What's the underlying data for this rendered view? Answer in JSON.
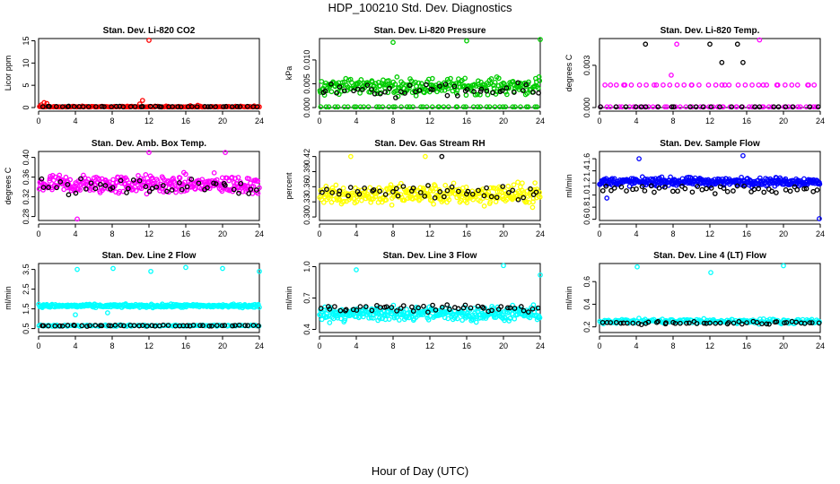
{
  "main_title": "HDP_100210  Std. Dev. Diagnostics",
  "x_axis_title": "Hour of Day (UTC)",
  "colors": {
    "red": "#ff0000",
    "green": "#00cc00",
    "magenta": "#ff00ff",
    "yellow": "#ffff00",
    "blue": "#0000ff",
    "cyan": "#00ffff",
    "black": "#000000"
  },
  "chart_data": [
    {
      "type": "scatter",
      "title": "Stan. Dev. Li-820 CO2",
      "ylabel": "Licor ppm",
      "xlim": [
        0,
        24
      ],
      "xticks": [
        "0",
        "4",
        "8",
        "12",
        "16",
        "20",
        "24"
      ],
      "ylim": [
        0,
        15.5
      ],
      "yticks": [
        "0",
        "5",
        "10",
        "15"
      ],
      "color": "red",
      "series": [
        {
          "name": "main",
          "color": "red",
          "base": 0.15,
          "spread": 0.25,
          "count": 150,
          "points": [
            [
              0.3,
              0.6
            ],
            [
              0.6,
              1.1
            ],
            [
              0.9,
              0.9
            ],
            [
              11.0,
              0.8
            ],
            [
              11.3,
              1.6
            ],
            [
              12.0,
              15.1
            ],
            [
              16.5,
              0.4
            ],
            [
              17.3,
              0.5
            ]
          ]
        },
        {
          "name": "reference",
          "color": "black",
          "base": 0.2,
          "spread": 0.15,
          "count": 45,
          "points": []
        }
      ]
    },
    {
      "type": "scatter",
      "title": "Stan. Dev. Li-820 Pressure",
      "ylabel": "kPa",
      "xlim": [
        0,
        24
      ],
      "xticks": [
        "0",
        "4",
        "8",
        "12",
        "16",
        "20",
        "24"
      ],
      "ylim": [
        0,
        0.0145
      ],
      "yticks": [
        "0.000",
        "0.005",
        "0.010"
      ],
      "color": "green",
      "series": [
        {
          "name": "main",
          "color": "green",
          "base": 0.0045,
          "spread": 0.0025,
          "count": 260,
          "points": [
            [
              8.0,
              0.0137
            ],
            [
              16.0,
              0.014
            ],
            [
              24.0,
              0.0143
            ]
          ]
        },
        {
          "name": "zeros",
          "color": "green",
          "base": 0.0,
          "spread": 0.0,
          "count": 50,
          "points": []
        },
        {
          "name": "reference",
          "color": "black",
          "base": 0.0035,
          "spread": 0.002,
          "count": 45,
          "points": []
        }
      ]
    },
    {
      "type": "scatter",
      "title": "Stan. Dev. Li-820 Temp.",
      "ylabel": "degrees C",
      "xlim": [
        0,
        24
      ],
      "xticks": [
        "0",
        "4",
        "8",
        "12",
        "16",
        "20",
        "24"
      ],
      "ylim": [
        0,
        0.0049
      ],
      "yticks": [
        "0.000",
        "0.003"
      ],
      "color": "magenta",
      "series": [
        {
          "name": "main",
          "color": "magenta",
          "base": 0.0016,
          "spread": 0.0,
          "count": 36,
          "points": [
            [
              7.8,
              0.0023
            ],
            [
              8.4,
              0.0045
            ],
            [
              17.4,
              0.0048
            ]
          ]
        },
        {
          "name": "zeros",
          "color": "magenta",
          "base": 0.0,
          "spread": 0.0,
          "count": 50,
          "points": []
        },
        {
          "name": "reference",
          "color": "black",
          "base": 0.0,
          "spread": 0.0,
          "count": 24,
          "points": [
            [
              5.0,
              0.0045
            ],
            [
              12.0,
              0.0045
            ],
            [
              15.0,
              0.0045
            ],
            [
              13.3,
              0.0032
            ],
            [
              15.6,
              0.0032
            ]
          ]
        }
      ]
    },
    {
      "type": "scatter",
      "title": "Stan. Dev. Amb. Box Temp.",
      "ylabel": "degrees C",
      "xlim": [
        0,
        24
      ],
      "xticks": [
        "0",
        "4",
        "8",
        "12",
        "16",
        "20",
        "24"
      ],
      "ylim": [
        0.272,
        0.412
      ],
      "yticks": [
        "0.28",
        "0.32",
        "0.36",
        "0.40"
      ],
      "color": "magenta",
      "series": [
        {
          "name": "main",
          "color": "magenta",
          "base": 0.345,
          "spread": 0.028,
          "count": 320,
          "points": [
            [
              4.2,
              0.275
            ],
            [
              12.0,
              0.41
            ],
            [
              20.3,
              0.41
            ]
          ]
        },
        {
          "name": "reference",
          "color": "black",
          "base": 0.34,
          "spread": 0.022,
          "count": 45,
          "points": []
        }
      ]
    },
    {
      "type": "scatter",
      "title": "Stan. Dev. Gas Stream RH",
      "ylabel": "percent",
      "xlim": [
        0,
        24
      ],
      "xticks": [
        "0",
        "4",
        "8",
        "12",
        "16",
        "20",
        "24"
      ],
      "ylim": [
        0.293,
        0.43
      ],
      "yticks": [
        "0.30",
        "0.33",
        "0.36",
        "0.39",
        "0.42"
      ],
      "color": "yellow",
      "series": [
        {
          "name": "main",
          "color": "yellow",
          "base": 0.345,
          "spread": 0.03,
          "count": 320,
          "points": [
            [
              3.4,
              0.42
            ],
            [
              11.5,
              0.42
            ]
          ]
        },
        {
          "name": "reference",
          "color": "black",
          "base": 0.35,
          "spread": 0.025,
          "count": 45,
          "points": [
            [
              13.3,
              0.42
            ]
          ]
        }
      ]
    },
    {
      "type": "scatter",
      "title": "Stan. Dev. Sample Flow",
      "ylabel": "ml/min",
      "xlim": [
        0,
        24
      ],
      "xticks": [
        "0",
        "4",
        "8",
        "12",
        "16",
        "20",
        "24"
      ],
      "ylim": [
        0.58,
        1.72
      ],
      "yticks": [
        "0.6",
        "0.8",
        "1.0",
        "1.2",
        "1.4",
        "1.6"
      ],
      "color": "blue",
      "series": [
        {
          "name": "main",
          "color": "blue",
          "base": 1.22,
          "spread": 0.1,
          "count": 360,
          "points": [
            [
              4.3,
              1.6
            ],
            [
              15.6,
              1.65
            ],
            [
              23.9,
              0.61
            ],
            [
              0.8,
              0.95
            ]
          ]
        },
        {
          "name": "reference",
          "color": "black",
          "base": 1.1,
          "spread": 0.1,
          "count": 45,
          "points": []
        }
      ]
    },
    {
      "type": "scatter",
      "title": "Stan. Dev. Line 2 Flow",
      "ylabel": "ml/min",
      "xlim": [
        0,
        24
      ],
      "xticks": [
        "0",
        "4",
        "8",
        "12",
        "16",
        "20",
        "24"
      ],
      "ylim": [
        0.3,
        3.8
      ],
      "yticks": [
        "0.5",
        "1.5",
        "2.5",
        "3.5"
      ],
      "color": "cyan",
      "series": [
        {
          "name": "main",
          "color": "cyan",
          "base": 1.65,
          "spread": 0.12,
          "count": 300,
          "points": [
            [
              4.2,
              3.5
            ],
            [
              8.1,
              3.55
            ],
            [
              12.2,
              3.4
            ],
            [
              16.0,
              3.6
            ],
            [
              20.0,
              3.55
            ],
            [
              24.0,
              3.4
            ],
            [
              4.0,
              1.2
            ],
            [
              7.5,
              1.3
            ]
          ]
        },
        {
          "name": "low",
          "color": "cyan",
          "base": 0.65,
          "spread": 0.05,
          "count": 120,
          "points": []
        },
        {
          "name": "reference",
          "color": "black",
          "base": 0.65,
          "spread": 0.05,
          "count": 50,
          "points": []
        }
      ]
    },
    {
      "type": "scatter",
      "title": "Stan. Dev. Line 3 Flow",
      "ylabel": "ml/min",
      "xlim": [
        0,
        24
      ],
      "xticks": [
        "0",
        "4",
        "8",
        "12",
        "16",
        "20",
        "24"
      ],
      "ylim": [
        0.37,
        1.03
      ],
      "yticks": [
        "0.4",
        "0.7",
        "1.0"
      ],
      "color": "cyan",
      "series": [
        {
          "name": "main",
          "color": "cyan",
          "base": 0.55,
          "spread": 0.1,
          "count": 340,
          "points": [
            [
              4.0,
              0.97
            ],
            [
              20.0,
              1.01
            ],
            [
              24.0,
              0.92
            ]
          ]
        },
        {
          "name": "reference",
          "color": "black",
          "base": 0.6,
          "spread": 0.06,
          "count": 50,
          "points": []
        }
      ]
    },
    {
      "type": "scatter",
      "title": "Stan. Dev. Line 4 (LT) Flow",
      "ylabel": "ml/min",
      "xlim": [
        0,
        24
      ],
      "xticks": [
        "0",
        "4",
        "8",
        "12",
        "16",
        "20",
        "24"
      ],
      "ylim": [
        0.15,
        0.76
      ],
      "yticks": [
        "0.2",
        "0.4",
        "0.6"
      ],
      "color": "cyan",
      "series": [
        {
          "name": "main",
          "color": "cyan",
          "base": 0.25,
          "spread": 0.03,
          "count": 200,
          "points": [
            [
              4.1,
              0.73
            ],
            [
              12.1,
              0.68
            ],
            [
              20.0,
              0.74
            ]
          ]
        },
        {
          "name": "reference",
          "color": "black",
          "base": 0.235,
          "spread": 0.02,
          "count": 50,
          "points": []
        }
      ]
    }
  ]
}
